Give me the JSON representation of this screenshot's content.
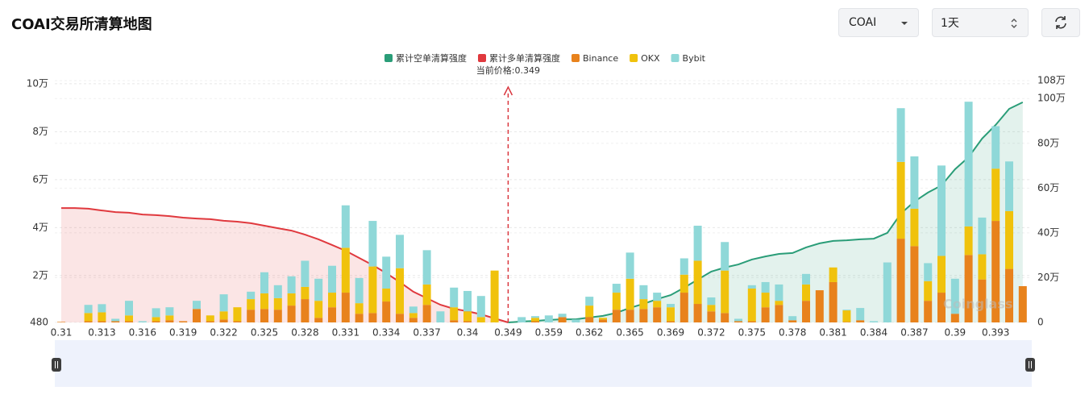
{
  "header": {
    "title": "COAI交易所清算地图"
  },
  "controls": {
    "symbol": "COAI",
    "interval": "1天"
  },
  "chart_data": {
    "type": "bar",
    "stacked": true,
    "annotation": "当前价格:0.349",
    "watermark": "Coinglass",
    "legend": "top",
    "grid": true,
    "categories": [
      "0.31",
      null,
      null,
      "0.313",
      null,
      null,
      "0.316",
      null,
      null,
      "0.319",
      null,
      null,
      "0.322",
      null,
      null,
      "0.325",
      null,
      null,
      "0.328",
      null,
      null,
      "0.331",
      null,
      null,
      "0.334",
      null,
      null,
      "0.337",
      null,
      null,
      "0.34",
      null,
      null,
      "0.349",
      null,
      null,
      "0.359",
      null,
      null,
      "0.362",
      null,
      null,
      "0.365",
      null,
      null,
      "0.369",
      null,
      null,
      "0.372",
      null,
      null,
      "0.375",
      null,
      null,
      "0.378",
      null,
      null,
      "0.381",
      null,
      null,
      "0.384",
      null,
      null,
      "0.387",
      null,
      null,
      "0.39",
      null,
      null,
      "0.393",
      null,
      null
    ],
    "series": [
      {
        "name": "累计空单清算强度",
        "color": "#2a9d78",
        "type": "line",
        "axis": "y2",
        "values": [
          null,
          null,
          null,
          null,
          null,
          null,
          null,
          null,
          null,
          null,
          null,
          null,
          null,
          null,
          null,
          null,
          null,
          null,
          null,
          null,
          null,
          null,
          null,
          null,
          null,
          null,
          null,
          null,
          null,
          null,
          null,
          null,
          null,
          0,
          4000,
          7000,
          11000,
          14000,
          14000,
          22000,
          29000,
          43000,
          65000,
          83000,
          104000,
          122000,
          155000,
          191000,
          227000,
          245000,
          259000,
          281000,
          295000,
          306000,
          310000,
          335000,
          353000,
          364000,
          367000,
          371000,
          374000,
          400000,
          486000,
          540000,
          580000,
          612000,
          684000,
          738000,
          821000,
          882000,
          954000,
          983000
        ]
      },
      {
        "name": "累计多单清算强度",
        "color": "#e0393e",
        "type": "line",
        "axis": "y2",
        "values": [
          511000,
          511000,
          508000,
          500000,
          493000,
          490000,
          482000,
          479000,
          475000,
          468000,
          464000,
          461000,
          454000,
          450000,
          443000,
          432000,
          421000,
          410000,
          392000,
          371000,
          346000,
          320000,
          288000,
          256000,
          220000,
          180000,
          137000,
          108000,
          79000,
          61000,
          50000,
          36000,
          18000,
          0,
          null,
          null,
          null,
          null,
          null,
          null,
          null,
          null,
          null,
          null,
          null,
          null,
          null,
          null,
          null,
          null,
          null,
          null,
          null,
          null,
          null,
          null,
          null,
          null,
          null,
          null,
          null,
          null,
          null,
          null,
          null,
          null,
          null,
          null,
          null,
          null,
          null,
          null
        ]
      },
      {
        "name": "Binance",
        "color": "#e8821c",
        "values": [
          700,
          0,
          1000,
          1000,
          1000,
          1000,
          0,
          1000,
          1400,
          1000,
          6100,
          1000,
          1700,
          1000,
          5800,
          6100,
          5800,
          7500,
          10200,
          2400,
          6800,
          12900,
          4100,
          4400,
          9200,
          4100,
          2400,
          7800,
          300,
          1400,
          1000,
          300,
          300,
          0,
          0,
          1000,
          0,
          2700,
          0,
          2700,
          1700,
          5800,
          5800,
          6100,
          6800,
          1000,
          12900,
          8200,
          5100,
          4400,
          1000,
          1000,
          6800,
          7800,
          1400,
          9500,
          13900,
          17300,
          700,
          1400,
          0,
          0,
          35400,
          32300,
          9500,
          12900,
          4100,
          28600,
          18400,
          42800,
          22800,
          15600
        ]
      },
      {
        "name": "OKX",
        "color": "#f0c20c",
        "values": [
          0,
          0,
          3400,
          3700,
          0,
          2400,
          0,
          1700,
          2000,
          0,
          0,
          2400,
          3400,
          5800,
          4400,
          6500,
          4800,
          5100,
          5100,
          7100,
          6100,
          18700,
          4400,
          19400,
          5400,
          19000,
          2000,
          8500,
          0,
          5400,
          4100,
          2400,
          21800,
          0,
          0,
          1400,
          0,
          0,
          0,
          4800,
          700,
          7100,
          12900,
          4100,
          2700,
          5800,
          7500,
          18000,
          2700,
          17700,
          0,
          13600,
          6100,
          1700,
          0,
          6800,
          0,
          6100,
          4800,
          0,
          0,
          0,
          32000,
          15600,
          8200,
          15300,
          0,
          11900,
          10500,
          21800,
          24100,
          0
        ]
      },
      {
        "name": "Bybit",
        "color": "#8fd8d8",
        "values": [
          0,
          0,
          3400,
          3400,
          1000,
          6100,
          1000,
          3700,
          3400,
          0,
          3400,
          0,
          7100,
          0,
          3100,
          8800,
          5400,
          7100,
          10900,
          9200,
          11200,
          17700,
          10500,
          19000,
          13300,
          13900,
          2700,
          14300,
          4800,
          8200,
          8500,
          8800,
          0,
          0,
          2700,
          700,
          3400,
          1400,
          1700,
          3700,
          0,
          3700,
          10900,
          5800,
          3400,
          1400,
          6800,
          14600,
          3100,
          11900,
          1000,
          1400,
          4400,
          6800,
          1700,
          4400,
          0,
          0,
          300,
          5100,
          1000,
          25500,
          22400,
          21800,
          7500,
          37700,
          14600,
          52000,
          15300,
          17700,
          20700,
          0
        ]
      }
    ],
    "ylim": [
      480,
      101300
    ],
    "yticks": [
      480,
      {
        "value": 20000,
        "label": "2万"
      },
      {
        "value": 40000,
        "label": "4万"
      },
      {
        "value": 60000,
        "label": "6万"
      },
      {
        "value": 80000,
        "label": "8万"
      },
      {
        "value": 100000,
        "label": "10万"
      }
    ],
    "y2lim": [
      0,
      1080000
    ],
    "y2ticks": [
      0,
      {
        "value": 200000,
        "label": "20万"
      },
      {
        "value": 400000,
        "label": "40万"
      },
      {
        "value": 600000,
        "label": "60万"
      },
      {
        "value": 800000,
        "label": "80万"
      },
      {
        "value": 1000000,
        "label": "100万"
      },
      {
        "value": 1080000,
        "label": "108万"
      }
    ]
  }
}
